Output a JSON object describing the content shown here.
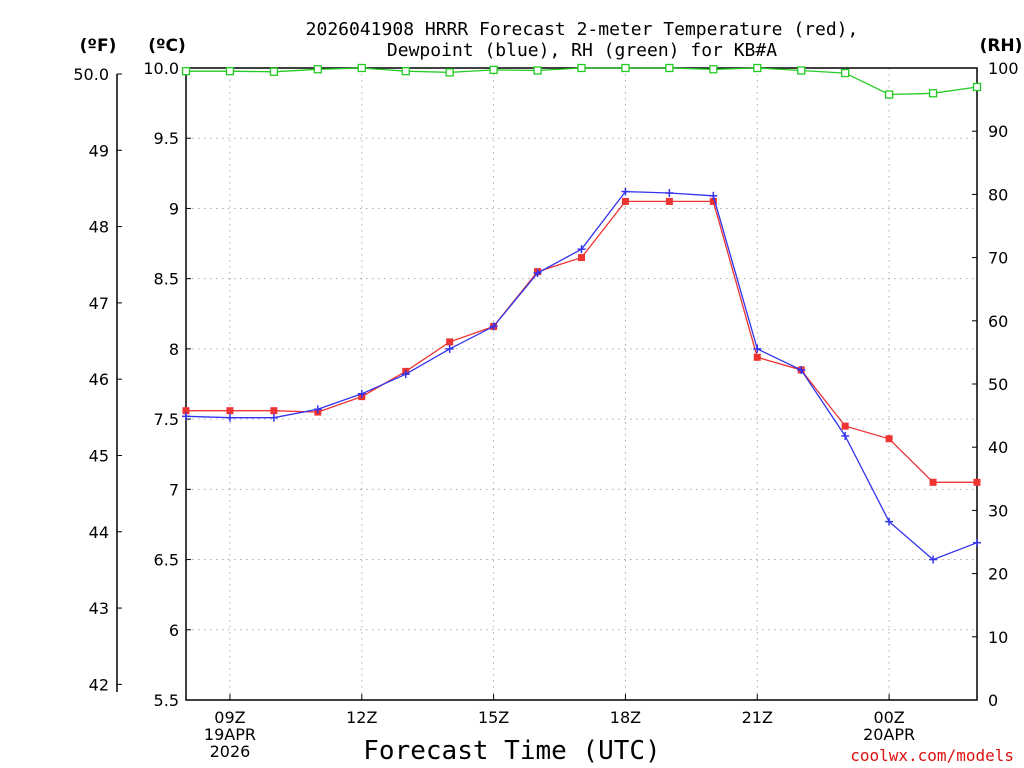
{
  "chart_data": {
    "type": "line",
    "title": [
      "2026041908 HRRR Forecast 2-meter Temperature (red),",
      "Dewpoint (blue), RH (green) for KB#A"
    ],
    "xlabel": "Forecast Time (UTC)",
    "unit_labels": {
      "fahrenheit": "(ºF)",
      "celsius": "(ºC)",
      "rh": "(RH)"
    },
    "x_ticks": [
      {
        "hour": 1,
        "label": "09Z",
        "sub": [
          "19APR",
          "2026"
        ]
      },
      {
        "hour": 4,
        "label": "12Z",
        "sub": []
      },
      {
        "hour": 7,
        "label": "15Z",
        "sub": []
      },
      {
        "hour": 10,
        "label": "18Z",
        "sub": []
      },
      {
        "hour": 13,
        "label": "21Z",
        "sub": []
      },
      {
        "hour": 16,
        "label": "00Z",
        "sub": [
          "20APR"
        ]
      }
    ],
    "xlim": [
      0,
      18
    ],
    "celsius_axis": {
      "ylim": [
        5.5,
        10.0
      ],
      "ticks": [
        "5.5",
        "6",
        "6.5",
        "7",
        "7.5",
        "8",
        "8.5",
        "9",
        "9.5",
        "10.0"
      ]
    },
    "fahrenheit_axis": {
      "ylim": [
        41.9,
        50.0
      ],
      "ticks": [
        "42",
        "43",
        "44",
        "45",
        "46",
        "47",
        "48",
        "49",
        "50.0"
      ]
    },
    "rh_axis": {
      "ylim": [
        0,
        100
      ],
      "ticks": [
        "0",
        "10",
        "20",
        "30",
        "40",
        "50",
        "60",
        "70",
        "80",
        "90",
        "100"
      ]
    },
    "series": [
      {
        "name": "Temperature",
        "axis": "celsius",
        "color": "#ee3333",
        "marker": "square-filled",
        "x": [
          0,
          1,
          2,
          3,
          4,
          5,
          6,
          7,
          8,
          9,
          10,
          11,
          12,
          13,
          14,
          15,
          16,
          17,
          18
        ],
        "values": [
          7.56,
          7.56,
          7.56,
          7.55,
          7.66,
          7.84,
          8.05,
          8.16,
          8.55,
          8.65,
          9.05,
          9.05,
          9.05,
          7.94,
          7.85,
          7.45,
          7.36,
          7.05,
          7.05
        ]
      },
      {
        "name": "Dewpoint",
        "axis": "celsius",
        "color": "#3333ee",
        "marker": "plus",
        "x": [
          0,
          1,
          2,
          3,
          4,
          5,
          6,
          7,
          8,
          9,
          10,
          11,
          12,
          13,
          14,
          15,
          16,
          17,
          18
        ],
        "values": [
          7.52,
          7.51,
          7.51,
          7.57,
          7.68,
          7.82,
          8.0,
          8.16,
          8.54,
          8.71,
          9.12,
          9.11,
          9.09,
          8.0,
          7.85,
          7.38,
          6.77,
          6.5,
          6.62
        ]
      },
      {
        "name": "RH",
        "axis": "rh",
        "color": "#22cc22",
        "marker": "square-open",
        "x": [
          0,
          1,
          2,
          3,
          4,
          5,
          6,
          7,
          8,
          9,
          10,
          11,
          12,
          13,
          14,
          15,
          16,
          17,
          18
        ],
        "values": [
          99.5,
          99.5,
          99.4,
          99.8,
          100,
          99.5,
          99.3,
          99.7,
          99.6,
          100,
          100,
          100,
          99.8,
          100,
          99.6,
          99.2,
          95.8,
          96.0,
          97.0
        ]
      }
    ],
    "grid": true,
    "watermark": "coolwx.com/models"
  },
  "colors": {
    "temperature": "#ee3333",
    "dewpoint": "#3333ee",
    "rh": "#22cc22",
    "grid": "#aaaaaa",
    "watermark": "#dd1111"
  }
}
